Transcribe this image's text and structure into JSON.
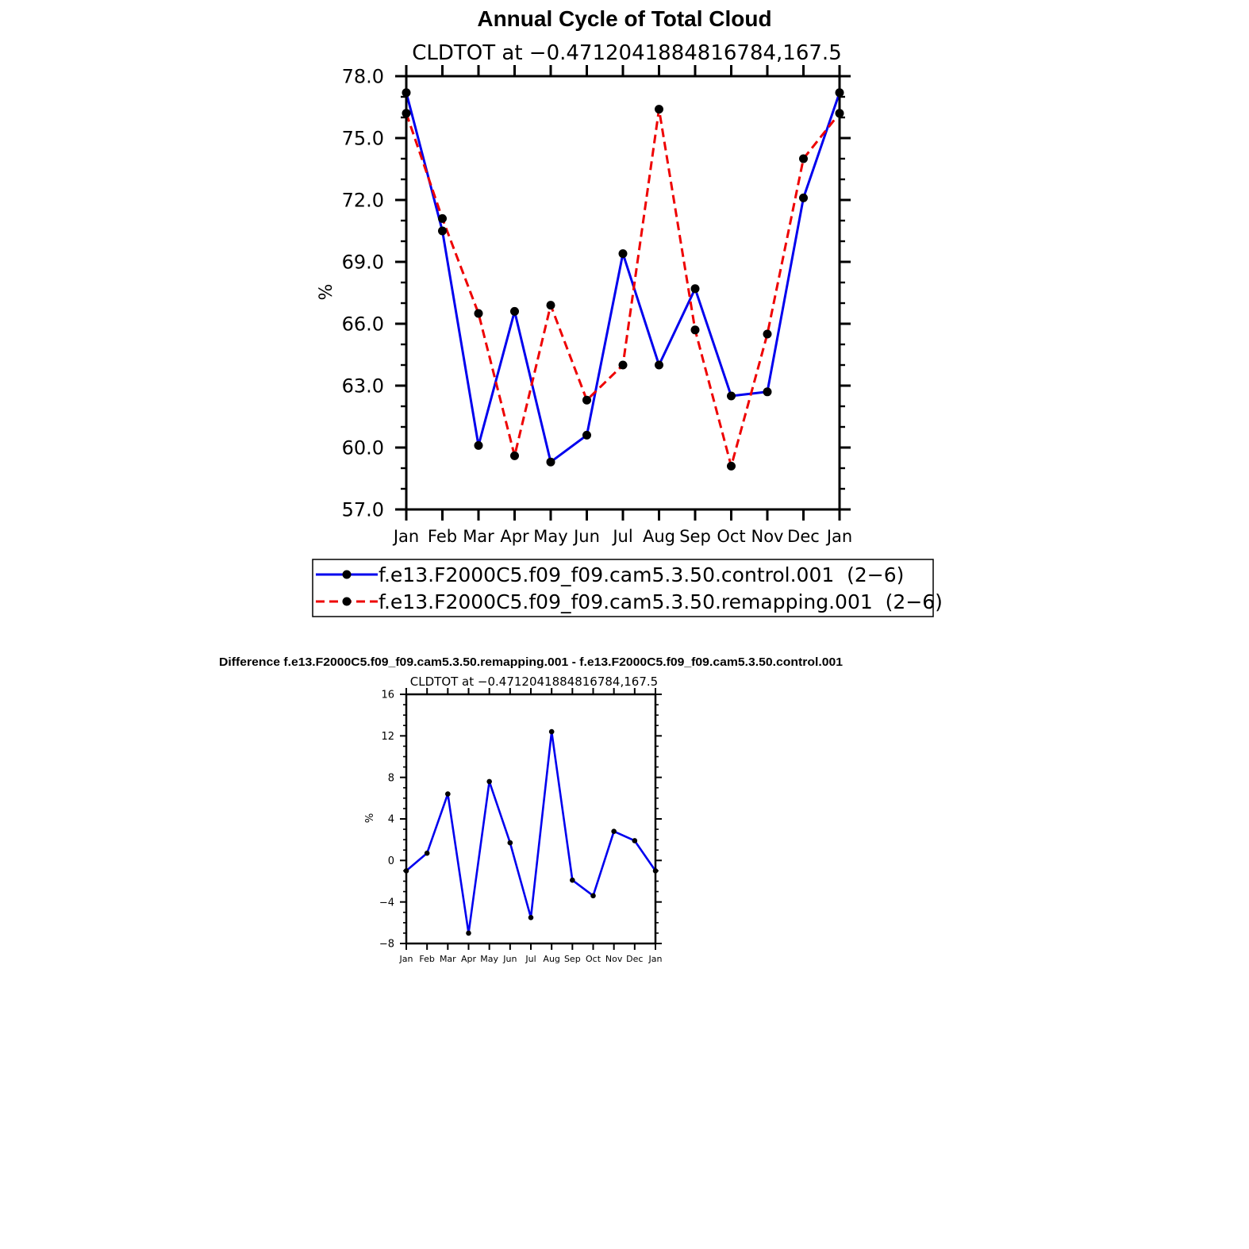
{
  "chart_data": [
    {
      "type": "line",
      "title": "Annual Cycle of Total Cloud",
      "subtitle": "CLDTOT at −0.4712041884816784,167.5",
      "xlabel": "",
      "ylabel": "%",
      "categories": [
        "Jan",
        "Feb",
        "Mar",
        "Apr",
        "May",
        "Jun",
        "Jul",
        "Aug",
        "Sep",
        "Oct",
        "Nov",
        "Dec",
        "Jan"
      ],
      "ylim": [
        57,
        78
      ],
      "yticks": [
        "57.0",
        "60.0",
        "63.0",
        "66.0",
        "69.0",
        "72.0",
        "75.0",
        "78.0"
      ],
      "series": [
        {
          "name": "f.e13.F2000C5.f09_f09.cam5.3.50.control.001  (2−6)",
          "values": [
            77.2,
            70.5,
            60.1,
            66.6,
            59.3,
            60.6,
            69.4,
            64.0,
            67.7,
            62.5,
            62.7,
            72.1,
            77.2
          ],
          "color": "#0000ee",
          "dash": "solid"
        },
        {
          "name": "f.e13.F2000C5.f09_f09.cam5.3.50.remapping.001  (2−6)",
          "values": [
            76.2,
            71.1,
            66.5,
            59.6,
            66.9,
            62.3,
            64.0,
            76.4,
            65.7,
            59.1,
            65.5,
            74.0,
            76.2
          ],
          "color": "#ee0000",
          "dash": "dashed"
        }
      ],
      "legend": "bottom"
    },
    {
      "type": "line",
      "title": "Difference f.e13.F2000C5.f09_f09.cam5.3.50.remapping.001 - f.e13.F2000C5.f09_f09.cam5.3.50.control.001",
      "subtitle": "CLDTOT at −0.4712041884816784,167.5",
      "xlabel": "",
      "ylabel": "%",
      "categories": [
        "Jan",
        "Feb",
        "Mar",
        "Apr",
        "May",
        "Jun",
        "Jul",
        "Aug",
        "Sep",
        "Oct",
        "Nov",
        "Dec",
        "Jan"
      ],
      "ylim": [
        -8,
        16
      ],
      "yticks": [
        "−8",
        "−4",
        "0",
        "4",
        "8",
        "12",
        "16"
      ],
      "series": [
        {
          "values": [
            -1.0,
            0.7,
            6.4,
            -7.0,
            7.6,
            1.7,
            -5.5,
            12.4,
            -1.9,
            -3.4,
            2.8,
            1.9,
            -1.0
          ],
          "color": "#0000ee",
          "dash": "solid"
        }
      ]
    }
  ]
}
